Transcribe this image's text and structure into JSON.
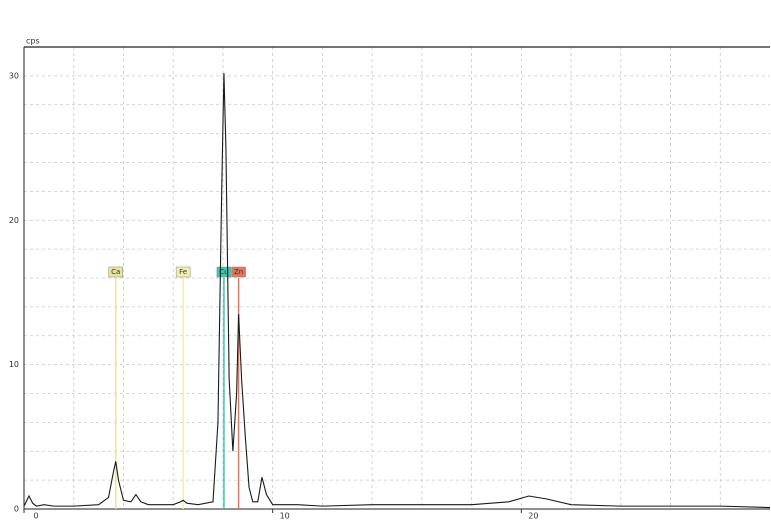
{
  "chart_data": {
    "type": "line",
    "y_label": "cps",
    "x": [
      0,
      0.2,
      0.35,
      0.5,
      0.8,
      1.2,
      2,
      3,
      3.4,
      3.6,
      3.69,
      3.8,
      4.0,
      4.3,
      4.5,
      4.7,
      5.0,
      6.0,
      6.3,
      6.4,
      6.55,
      7.0,
      7.6,
      7.8,
      7.95,
      8.04,
      8.12,
      8.25,
      8.4,
      8.55,
      8.63,
      8.75,
      8.9,
      9.05,
      9.2,
      9.4,
      9.57,
      9.75,
      10,
      11,
      12,
      14,
      16,
      18,
      19.5,
      20.3,
      21,
      22,
      24,
      26,
      28,
      30
    ],
    "series": [
      {
        "color": "#1a1a1a",
        "values": [
          0.2,
          0.9,
          0.4,
          0.2,
          0.3,
          0.2,
          0.2,
          0.3,
          0.8,
          2.6,
          3.3,
          2.0,
          0.6,
          0.5,
          1.0,
          0.5,
          0.3,
          0.3,
          0.5,
          0.6,
          0.4,
          0.3,
          0.5,
          6.0,
          22.0,
          30.2,
          25.0,
          9.0,
          4.0,
          8.0,
          13.5,
          9.0,
          5.0,
          1.5,
          0.5,
          0.5,
          2.2,
          1.0,
          0.3,
          0.3,
          0.2,
          0.3,
          0.3,
          0.3,
          0.5,
          0.9,
          0.7,
          0.3,
          0.2,
          0.2,
          0.2,
          0.1
        ]
      }
    ],
    "markers": [
      {
        "label": "Ca",
        "x": 3.69,
        "height": 16,
        "color": "#e8e49a"
      },
      {
        "label": "Fe",
        "x": 6.4,
        "height": 16,
        "color": "#f0eeb0"
      },
      {
        "label": "Cu",
        "x": 8.04,
        "height": 16,
        "color": "#3cc8b0"
      },
      {
        "label": "Zn",
        "x": 8.63,
        "height": 16,
        "color": "#e8735a"
      }
    ],
    "xlim": [
      0,
      30
    ],
    "ylim": [
      0,
      32
    ],
    "xticks": [
      0,
      10,
      20
    ],
    "yticks": [
      0,
      10,
      20,
      30
    ],
    "xminorticks": [
      2,
      4,
      6,
      8,
      12,
      14,
      16,
      18,
      22,
      24,
      26,
      28
    ],
    "yminorticks": [
      2,
      4,
      6,
      8,
      12,
      14,
      16,
      18,
      22,
      24,
      26,
      28
    ],
    "grid": true
  }
}
